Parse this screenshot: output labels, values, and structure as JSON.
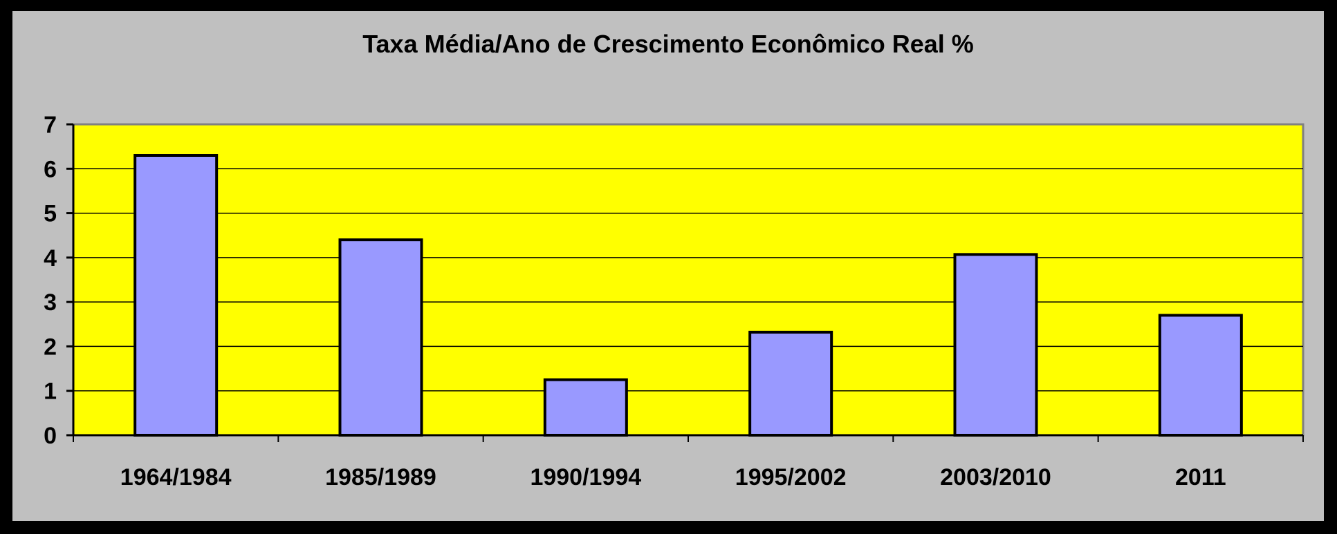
{
  "chart_data": {
    "type": "bar",
    "title": "Taxa Média/Ano de Crescimento Econômico Real %",
    "categories": [
      "1964/1984",
      "1985/1989",
      "1990/1994",
      "1995/2002",
      "2003/2010",
      "2011"
    ],
    "values": [
      6.3,
      4.4,
      1.25,
      2.32,
      4.07,
      2.7
    ],
    "ylim": [
      0,
      7
    ],
    "yticks": [
      "0",
      "1",
      "2",
      "3",
      "4",
      "5",
      "6",
      "7"
    ],
    "grid": true,
    "colors": {
      "outer_border": "#000000",
      "chart_background": "#c0c0c0",
      "plot_background": "#ffff00",
      "bar_fill": "#9999ff",
      "bar_stroke": "#000000",
      "gridline": "#000000"
    }
  }
}
